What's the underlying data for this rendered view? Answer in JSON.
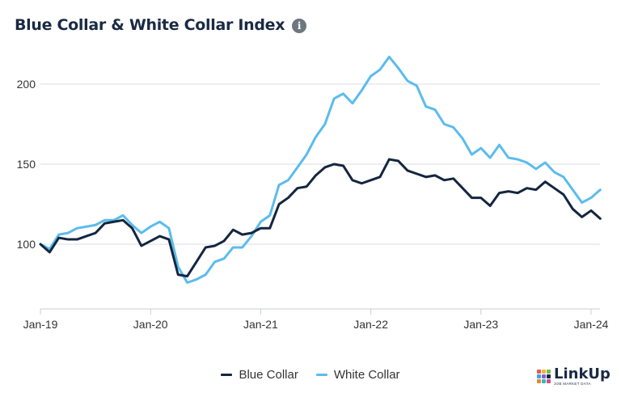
{
  "header": {
    "title": "Blue Collar & White Collar Index",
    "info_icon": "info-icon"
  },
  "logo": {
    "name": "LinkUp",
    "tagline": "JOB MARKET DATA",
    "dot_colors": [
      "#e85a4f",
      "#f2b43c",
      "#6cc04a",
      "#3aa3e3",
      "#8e5bd6",
      "#1a2a44",
      "#f07f3c",
      "#2ac1b5",
      "#d64d8a"
    ]
  },
  "colors": {
    "blue_collar": "#14263f",
    "white_collar": "#5bbcec",
    "grid": "#d9dde3",
    "axis_text": "#333333"
  },
  "chart_data": {
    "type": "line",
    "title": "Blue Collar & White Collar Index",
    "xlabel": "",
    "ylabel": "",
    "x_ticks": [
      "Jan-19",
      "Jan-20",
      "Jan-21",
      "Jan-22",
      "Jan-23",
      "Jan-24"
    ],
    "y_ticks": [
      100,
      150,
      200
    ],
    "ylim": [
      60,
      225
    ],
    "x_start": "Jan-19",
    "grid": true,
    "legend_position": "bottom",
    "series": [
      {
        "name": "Blue Collar",
        "color": "#14263f",
        "values": [
          100,
          95,
          104,
          103,
          103,
          105,
          107,
          113,
          114,
          115,
          110,
          99,
          102,
          105,
          103,
          81,
          80,
          89,
          98,
          99,
          102,
          109,
          106,
          107,
          110,
          110,
          125,
          129,
          135,
          136,
          143,
          148,
          150,
          149,
          140,
          138,
          140,
          142,
          153,
          152,
          146,
          144,
          142,
          143,
          140,
          141,
          135,
          129,
          129,
          124,
          132,
          133,
          132,
          135,
          134,
          139,
          135,
          131,
          122,
          117,
          121,
          116
        ]
      },
      {
        "name": "White Collar",
        "color": "#5bbcec",
        "values": [
          100,
          97,
          106,
          107,
          110,
          111,
          112,
          115,
          115,
          118,
          112,
          107,
          111,
          114,
          110,
          86,
          76,
          78,
          81,
          89,
          91,
          98,
          98,
          105,
          114,
          118,
          137,
          140,
          148,
          156,
          167,
          175,
          191,
          194,
          188,
          196,
          205,
          209,
          217,
          210,
          202,
          199,
          186,
          184,
          175,
          173,
          166,
          156,
          160,
          154,
          162,
          154,
          153,
          151,
          147,
          151,
          145,
          142,
          134,
          126,
          129,
          134
        ]
      }
    ]
  }
}
